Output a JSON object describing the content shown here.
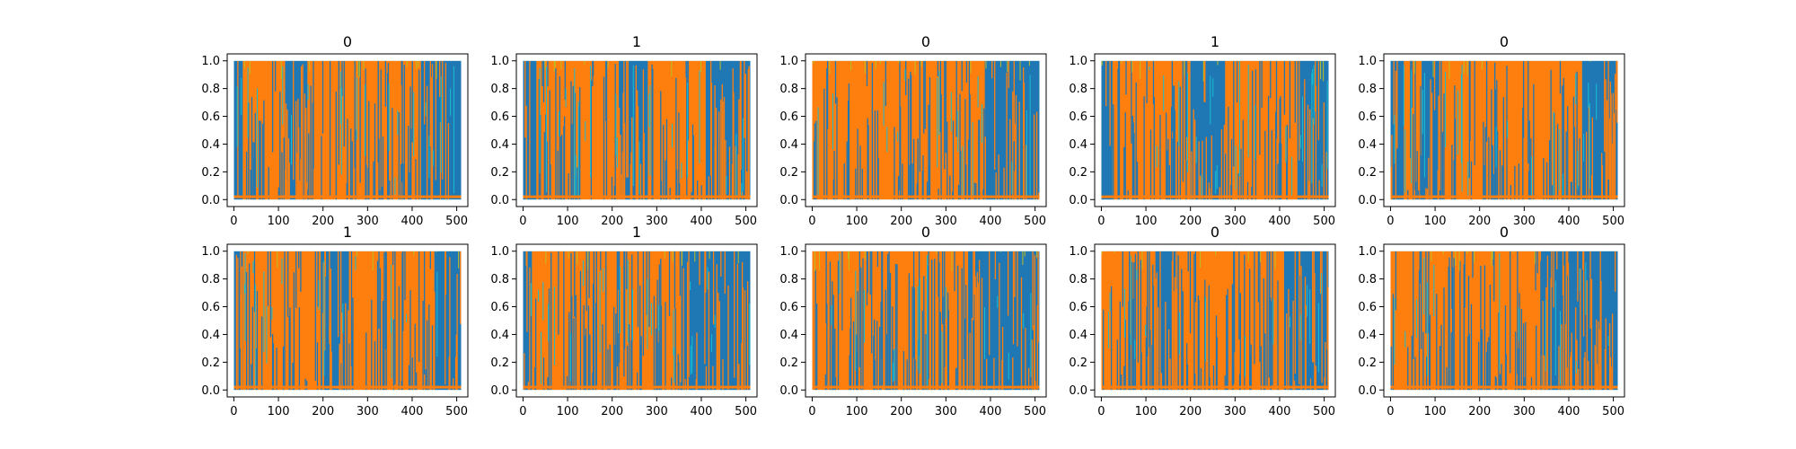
{
  "chart_data": [
    {
      "type": "line",
      "title": "0",
      "xlim": [
        -15,
        525
      ],
      "ylim": [
        -0.05,
        1.05
      ],
      "x_ticks": [
        0,
        100,
        200,
        300,
        400,
        500
      ],
      "y_ticks": [
        0.0,
        0.2,
        0.4,
        0.6,
        0.8,
        1.0
      ],
      "x_tick_labels": [
        "0",
        "100",
        "200",
        "300",
        "400",
        "500"
      ],
      "y_tick_labels": [
        "0.0",
        "0.2",
        "0.4",
        "0.6",
        "0.8",
        "1.0"
      ],
      "segments": [
        {
          "series": "blue",
          "x_range": [
            0,
            20
          ]
        },
        {
          "series": "orange",
          "x_range": [
            20,
            115
          ]
        },
        {
          "series": "blue",
          "x_range": [
            115,
            165
          ]
        },
        {
          "series": "orange",
          "x_range": [
            165,
            420
          ]
        },
        {
          "series": "blue",
          "x_range": [
            420,
            510
          ]
        }
      ]
    },
    {
      "type": "line",
      "title": "1",
      "xlim": [
        -15,
        525
      ],
      "ylim": [
        -0.05,
        1.05
      ],
      "x_ticks": [
        0,
        100,
        200,
        300,
        400,
        500
      ],
      "y_ticks": [
        0.0,
        0.2,
        0.4,
        0.6,
        0.8,
        1.0
      ],
      "x_tick_labels": [
        "0",
        "100",
        "200",
        "300",
        "400",
        "500"
      ],
      "y_tick_labels": [
        "0.0",
        "0.2",
        "0.4",
        "0.6",
        "0.8",
        "1.0"
      ],
      "segments": [
        {
          "series": "blue",
          "x_range": [
            0,
            30
          ]
        },
        {
          "series": "orange",
          "x_range": [
            30,
            215
          ]
        },
        {
          "series": "blue",
          "x_range": [
            215,
            280
          ]
        },
        {
          "series": "orange",
          "x_range": [
            280,
            410
          ]
        },
        {
          "series": "blue",
          "x_range": [
            410,
            510
          ]
        }
      ]
    },
    {
      "type": "line",
      "title": "0",
      "xlim": [
        -15,
        525
      ],
      "ylim": [
        -0.05,
        1.05
      ],
      "x_ticks": [
        0,
        100,
        200,
        300,
        400,
        500
      ],
      "y_ticks": [
        0.0,
        0.2,
        0.4,
        0.6,
        0.8,
        1.0
      ],
      "x_tick_labels": [
        "0",
        "100",
        "200",
        "300",
        "400",
        "500"
      ],
      "y_tick_labels": [
        "0.0",
        "0.2",
        "0.4",
        "0.6",
        "0.8",
        "1.0"
      ],
      "segments": [
        {
          "series": "orange",
          "x_range": [
            0,
            390
          ]
        },
        {
          "series": "blue",
          "x_range": [
            390,
            510
          ]
        }
      ]
    },
    {
      "type": "line",
      "title": "1",
      "xlim": [
        -15,
        525
      ],
      "ylim": [
        -0.05,
        1.05
      ],
      "x_ticks": [
        0,
        100,
        200,
        300,
        400,
        500
      ],
      "y_ticks": [
        0.0,
        0.2,
        0.4,
        0.6,
        0.8,
        1.0
      ],
      "x_tick_labels": [
        "0",
        "100",
        "200",
        "300",
        "400",
        "500"
      ],
      "y_tick_labels": [
        "0.0",
        "0.2",
        "0.4",
        "0.6",
        "0.8",
        "1.0"
      ],
      "segments": [
        {
          "series": "blue",
          "x_range": [
            0,
            25
          ]
        },
        {
          "series": "orange",
          "x_range": [
            25,
            200
          ]
        },
        {
          "series": "blue",
          "x_range": [
            200,
            280
          ]
        },
        {
          "series": "orange",
          "x_range": [
            280,
            440
          ]
        },
        {
          "series": "blue",
          "x_range": [
            440,
            510
          ]
        }
      ]
    },
    {
      "type": "line",
      "title": "0",
      "xlim": [
        -15,
        525
      ],
      "ylim": [
        -0.05,
        1.05
      ],
      "x_ticks": [
        0,
        100,
        200,
        300,
        400,
        500
      ],
      "y_ticks": [
        0.0,
        0.2,
        0.4,
        0.6,
        0.8,
        1.0
      ],
      "x_tick_labels": [
        "0",
        "100",
        "200",
        "300",
        "400",
        "500"
      ],
      "y_tick_labels": [
        "0.0",
        "0.2",
        "0.4",
        "0.6",
        "0.8",
        "1.0"
      ],
      "segments": [
        {
          "series": "blue",
          "x_range": [
            0,
            30
          ]
        },
        {
          "series": "orange",
          "x_range": [
            30,
            70
          ]
        },
        {
          "series": "blue",
          "x_range": [
            70,
            115
          ]
        },
        {
          "series": "orange",
          "x_range": [
            115,
            430
          ]
        },
        {
          "series": "blue",
          "x_range": [
            430,
            510
          ]
        }
      ]
    },
    {
      "type": "line",
      "title": "1",
      "xlim": [
        -15,
        525
      ],
      "ylim": [
        -0.05,
        1.05
      ],
      "x_ticks": [
        0,
        100,
        200,
        300,
        400,
        500
      ],
      "y_ticks": [
        0.0,
        0.2,
        0.4,
        0.6,
        0.8,
        1.0
      ],
      "x_tick_labels": [
        "0",
        "100",
        "200",
        "300",
        "400",
        "500"
      ],
      "y_tick_labels": [
        "0.0",
        "0.2",
        "0.4",
        "0.6",
        "0.8",
        "1.0"
      ],
      "segments": [
        {
          "series": "blue",
          "x_range": [
            0,
            20
          ]
        },
        {
          "series": "orange",
          "x_range": [
            20,
            195
          ]
        },
        {
          "series": "blue",
          "x_range": [
            195,
            260
          ]
        },
        {
          "series": "orange",
          "x_range": [
            260,
            450
          ]
        },
        {
          "series": "blue",
          "x_range": [
            450,
            510
          ]
        }
      ]
    },
    {
      "type": "line",
      "title": "1",
      "xlim": [
        -15,
        525
      ],
      "ylim": [
        -0.05,
        1.05
      ],
      "x_ticks": [
        0,
        100,
        200,
        300,
        400,
        500
      ],
      "y_ticks": [
        0.0,
        0.2,
        0.4,
        0.6,
        0.8,
        1.0
      ],
      "x_tick_labels": [
        "0",
        "100",
        "200",
        "300",
        "400",
        "500"
      ],
      "y_tick_labels": [
        "0.0",
        "0.2",
        "0.4",
        "0.6",
        "0.8",
        "1.0"
      ],
      "segments": [
        {
          "series": "blue",
          "x_range": [
            0,
            20
          ]
        },
        {
          "series": "orange",
          "x_range": [
            20,
            355
          ]
        },
        {
          "series": "blue",
          "x_range": [
            355,
            510
          ]
        }
      ]
    },
    {
      "type": "line",
      "title": "0",
      "xlim": [
        -15,
        525
      ],
      "ylim": [
        -0.05,
        1.05
      ],
      "x_ticks": [
        0,
        100,
        200,
        300,
        400,
        500
      ],
      "y_ticks": [
        0.0,
        0.2,
        0.4,
        0.6,
        0.8,
        1.0
      ],
      "x_tick_labels": [
        "0",
        "100",
        "200",
        "300",
        "400",
        "500"
      ],
      "y_tick_labels": [
        "0.0",
        "0.2",
        "0.4",
        "0.6",
        "0.8",
        "1.0"
      ],
      "segments": [
        {
          "series": "orange",
          "x_range": [
            0,
            350
          ]
        },
        {
          "series": "blue",
          "x_range": [
            350,
            510
          ]
        }
      ]
    },
    {
      "type": "line",
      "title": "0",
      "xlim": [
        -15,
        525
      ],
      "ylim": [
        -0.05,
        1.05
      ],
      "x_ticks": [
        0,
        100,
        200,
        300,
        400,
        500
      ],
      "y_ticks": [
        0.0,
        0.2,
        0.4,
        0.6,
        0.8,
        1.0
      ],
      "x_tick_labels": [
        "0",
        "100",
        "200",
        "300",
        "400",
        "500"
      ],
      "y_tick_labels": [
        "0.0",
        "0.2",
        "0.4",
        "0.6",
        "0.8",
        "1.0"
      ],
      "segments": [
        {
          "series": "orange",
          "x_range": [
            0,
            120
          ]
        },
        {
          "series": "blue",
          "x_range": [
            120,
            170
          ]
        },
        {
          "series": "orange",
          "x_range": [
            170,
            410
          ]
        },
        {
          "series": "blue",
          "x_range": [
            410,
            510
          ]
        }
      ]
    },
    {
      "type": "line",
      "title": "0",
      "xlim": [
        -15,
        525
      ],
      "ylim": [
        -0.05,
        1.05
      ],
      "x_ticks": [
        0,
        100,
        200,
        300,
        400,
        500
      ],
      "y_ticks": [
        0.0,
        0.2,
        0.4,
        0.6,
        0.8,
        1.0
      ],
      "x_tick_labels": [
        "0",
        "100",
        "200",
        "300",
        "400",
        "500"
      ],
      "y_tick_labels": [
        "0.0",
        "0.2",
        "0.4",
        "0.6",
        "0.8",
        "1.0"
      ],
      "segments": [
        {
          "series": "orange",
          "x_range": [
            0,
            340
          ]
        },
        {
          "series": "blue",
          "x_range": [
            340,
            510
          ]
        }
      ]
    }
  ],
  "colors": {
    "blue": "#1f77b4",
    "orange": "#ff7f0e",
    "cyan": "#17becf",
    "olive": "#bcbd22",
    "green": "#2ca02c",
    "red": "#d62728",
    "purple": "#9467bd",
    "pink": "#e377c2",
    "gray": "#7f7f7f",
    "brown": "#8c564b"
  }
}
